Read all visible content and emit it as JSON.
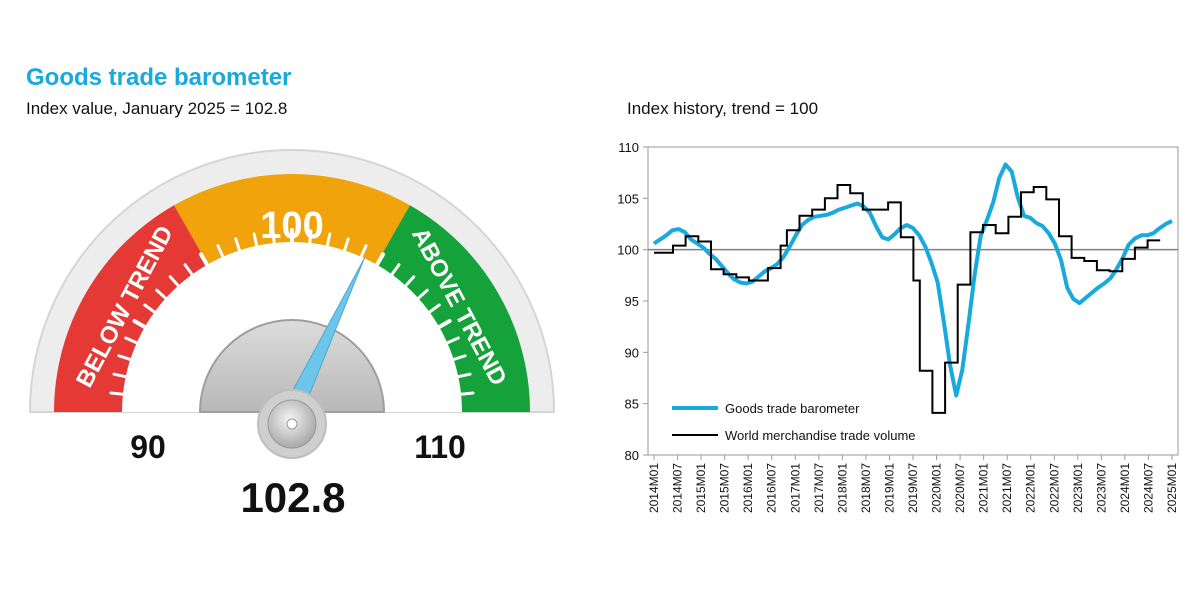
{
  "header": {
    "title": "Goods trade barometer",
    "subtitle": "Index value, January 2025 = 102.8",
    "chart_subtitle": "Index history, trend = 100"
  },
  "chart_data": [
    {
      "type": "gauge",
      "value": 102.8,
      "value_label": "102.8",
      "range": [
        90,
        110
      ],
      "min_label": "90",
      "max_label": "110",
      "center_label": "100",
      "zones": [
        {
          "name": "BELOW TREND",
          "from": 90,
          "to": 96.7,
          "color": "#e53935"
        },
        {
          "name": "",
          "from": 96.7,
          "to": 103.3,
          "color": "#f0a30a"
        },
        {
          "name": "ABOVE TREND",
          "from": 103.3,
          "to": 110,
          "color": "#16a23a"
        }
      ],
      "needle_color": "#6cc6ea"
    },
    {
      "type": "line",
      "ylim": [
        80,
        110
      ],
      "yticks": [
        "80",
        "85",
        "90",
        "95",
        "100",
        "105",
        "110"
      ],
      "reference_line": 100,
      "xlabels": [
        "2014M01",
        "2014M07",
        "2015M01",
        "2015M07",
        "2016M01",
        "2016M07",
        "2017M01",
        "2017M07",
        "2018M01",
        "2018M07",
        "2019M01",
        "2019M07",
        "2020M01",
        "2020M07",
        "2021M01",
        "2021M07",
        "2022M01",
        "2022M07",
        "2023M01",
        "2023M07",
        "2024M01",
        "2024M07",
        "2025M01"
      ],
      "x_start": "2014M01",
      "x_step": "month",
      "legend_position": "bottom-left",
      "series": [
        {
          "name": "Goods trade barometer",
          "color": "#18a9dd",
          "values": [
            100.6,
            101.0,
            101.4,
            101.9,
            102.0,
            101.7,
            101.0,
            100.6,
            100.2,
            99.6,
            99.1,
            98.4,
            97.7,
            97.1,
            96.8,
            96.7,
            96.9,
            97.4,
            97.9,
            98.2,
            98.6,
            99.3,
            100.3,
            101.4,
            102.4,
            102.9,
            103.2,
            103.3,
            103.4,
            103.6,
            103.9,
            104.1,
            104.3,
            104.5,
            104.2,
            103.6,
            102.3,
            101.2,
            101.0,
            101.5,
            102.1,
            102.4,
            102.1,
            101.4,
            100.3,
            98.7,
            96.8,
            93.0,
            88.8,
            85.8,
            88.3,
            92.8,
            97.6,
            101.4,
            102.9,
            104.6,
            107.0,
            108.3,
            107.6,
            105.1,
            103.3,
            103.1,
            102.6,
            102.3,
            101.6,
            100.6,
            99.0,
            96.3,
            95.2,
            94.8,
            95.3,
            95.8,
            96.3,
            96.7,
            97.2,
            98.1,
            99.2,
            100.5,
            101.1,
            101.4,
            101.4,
            101.6,
            102.1,
            102.5,
            102.8
          ]
        },
        {
          "name": "World merchandise trade volume",
          "color": "#000000",
          "values": [
            99.7,
            99.7,
            99.7,
            100.4,
            100.4,
            101.3,
            101.3,
            100.8,
            100.8,
            98.1,
            98.1,
            97.6,
            97.6,
            97.3,
            97.3,
            97.0,
            97.0,
            97.0,
            98.2,
            98.2,
            100.4,
            101.9,
            101.9,
            103.3,
            103.3,
            103.9,
            103.9,
            105.0,
            105.0,
            106.3,
            106.3,
            105.5,
            105.5,
            103.9,
            103.9,
            103.9,
            103.9,
            104.6,
            104.6,
            101.2,
            101.2,
            97.0,
            88.2,
            88.2,
            84.1,
            84.1,
            89.0,
            89.0,
            96.6,
            96.6,
            101.7,
            101.7,
            102.4,
            102.4,
            101.6,
            101.6,
            103.2,
            103.2,
            105.6,
            105.6,
            106.1,
            106.1,
            104.9,
            104.9,
            101.3,
            101.3,
            99.2,
            99.2,
            98.9,
            98.9,
            98.0,
            98.0,
            97.9,
            97.9,
            99.1,
            99.1,
            100.2,
            100.2,
            100.9,
            100.9
          ]
        }
      ]
    }
  ]
}
